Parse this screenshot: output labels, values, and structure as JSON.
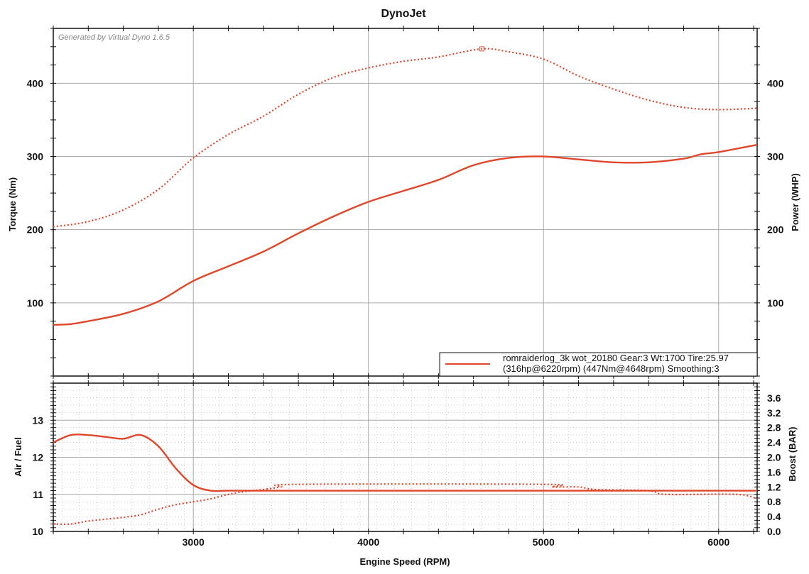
{
  "chart_data": [
    {
      "type": "line",
      "title": "DynoJet",
      "watermark": "Generated by Virtual Dyno 1.6.5",
      "xlabel": "Engine Speed (RPM)",
      "ylabel": "Torque (Nm)",
      "y2label": "Power (WHP)",
      "xlim": [
        2200,
        6220
      ],
      "ylim": [
        0,
        475
      ],
      "y2lim": [
        0,
        475
      ],
      "xticks": [
        3000,
        4000,
        5000,
        6000
      ],
      "yticks": [
        100,
        200,
        300,
        400
      ],
      "y2ticks": [
        100,
        200,
        300,
        400
      ],
      "grid": true,
      "legend": {
        "placement": "bottom-right",
        "line1": "romraiderlog_3k wot_20180 Gear:3 Wt:1700 Tire:25.97",
        "line2": "(316hp@6220rpm) (447Nm@4648rpm) Smoothing:3"
      },
      "series": [
        {
          "name": "Torque",
          "axis": "left",
          "style": "dotted",
          "color": "#e0462a",
          "x": [
            2200,
            2400,
            2600,
            2800,
            3000,
            3200,
            3400,
            3600,
            3800,
            4000,
            4200,
            4400,
            4648,
            4800,
            5000,
            5200,
            5400,
            5600,
            5800,
            6000,
            6220
          ],
          "y": [
            204,
            211,
            227,
            255,
            298,
            330,
            355,
            385,
            408,
            421,
            430,
            436,
            447,
            443,
            433,
            410,
            392,
            377,
            367,
            364,
            366
          ],
          "peak": {
            "x": 4648,
            "y": 447
          }
        },
        {
          "name": "Power",
          "axis": "right",
          "style": "solid",
          "color": "#e0462a",
          "x": [
            2200,
            2300,
            2400,
            2600,
            2800,
            3000,
            3200,
            3400,
            3600,
            3800,
            4000,
            4200,
            4400,
            4600,
            4800,
            5000,
            5200,
            5400,
            5600,
            5800,
            5900,
            6000,
            6220
          ],
          "y": [
            70,
            71,
            75,
            85,
            102,
            130,
            150,
            170,
            195,
            218,
            238,
            253,
            268,
            288,
            298,
            300,
            296,
            292,
            292,
            297,
            303,
            306,
            316
          ]
        }
      ]
    },
    {
      "type": "line",
      "xlabel": "Engine Speed (RPM)",
      "ylabel": "Air / Fuel",
      "y2label": "Boost (BAR)",
      "xlim": [
        2200,
        6220
      ],
      "ylim": [
        10,
        14
      ],
      "y2lim": [
        0,
        4.0
      ],
      "xticks": [
        3000,
        4000,
        5000,
        6000
      ],
      "yticks": [
        10,
        11,
        12,
        13
      ],
      "y2ticks": [
        "0.0",
        "0.4",
        "0.8",
        "1.2",
        "1.6",
        "2.0",
        "2.4",
        "2.8",
        "3.2",
        "3.6"
      ],
      "grid": true,
      "series": [
        {
          "name": "Air / Fuel",
          "axis": "left",
          "style": "solid",
          "color": "#e0462a",
          "x": [
            2200,
            2300,
            2400,
            2500,
            2600,
            2700,
            2800,
            2900,
            3000,
            3100,
            3200,
            3500,
            6220
          ],
          "y": [
            12.4,
            12.6,
            12.6,
            12.55,
            12.5,
            12.6,
            12.3,
            11.7,
            11.25,
            11.1,
            11.1,
            11.1,
            11.1
          ]
        },
        {
          "name": "Boost",
          "axis": "right",
          "style": "dotted",
          "color": "#e0462a",
          "x": [
            2200,
            2300,
            2400,
            2600,
            2700,
            2800,
            2900,
            3000,
            3100,
            3200,
            3300,
            3400,
            3500,
            3600,
            5000,
            5050,
            5200,
            5300,
            5600,
            5700,
            6100,
            6220
          ],
          "y": [
            0.2,
            0.2,
            0.28,
            0.38,
            0.45,
            0.6,
            0.72,
            0.8,
            0.88,
            1.0,
            1.08,
            1.13,
            1.2,
            1.27,
            1.27,
            1.2,
            1.2,
            1.13,
            1.1,
            1.0,
            1.0,
            0.88
          ]
        }
      ]
    }
  ]
}
